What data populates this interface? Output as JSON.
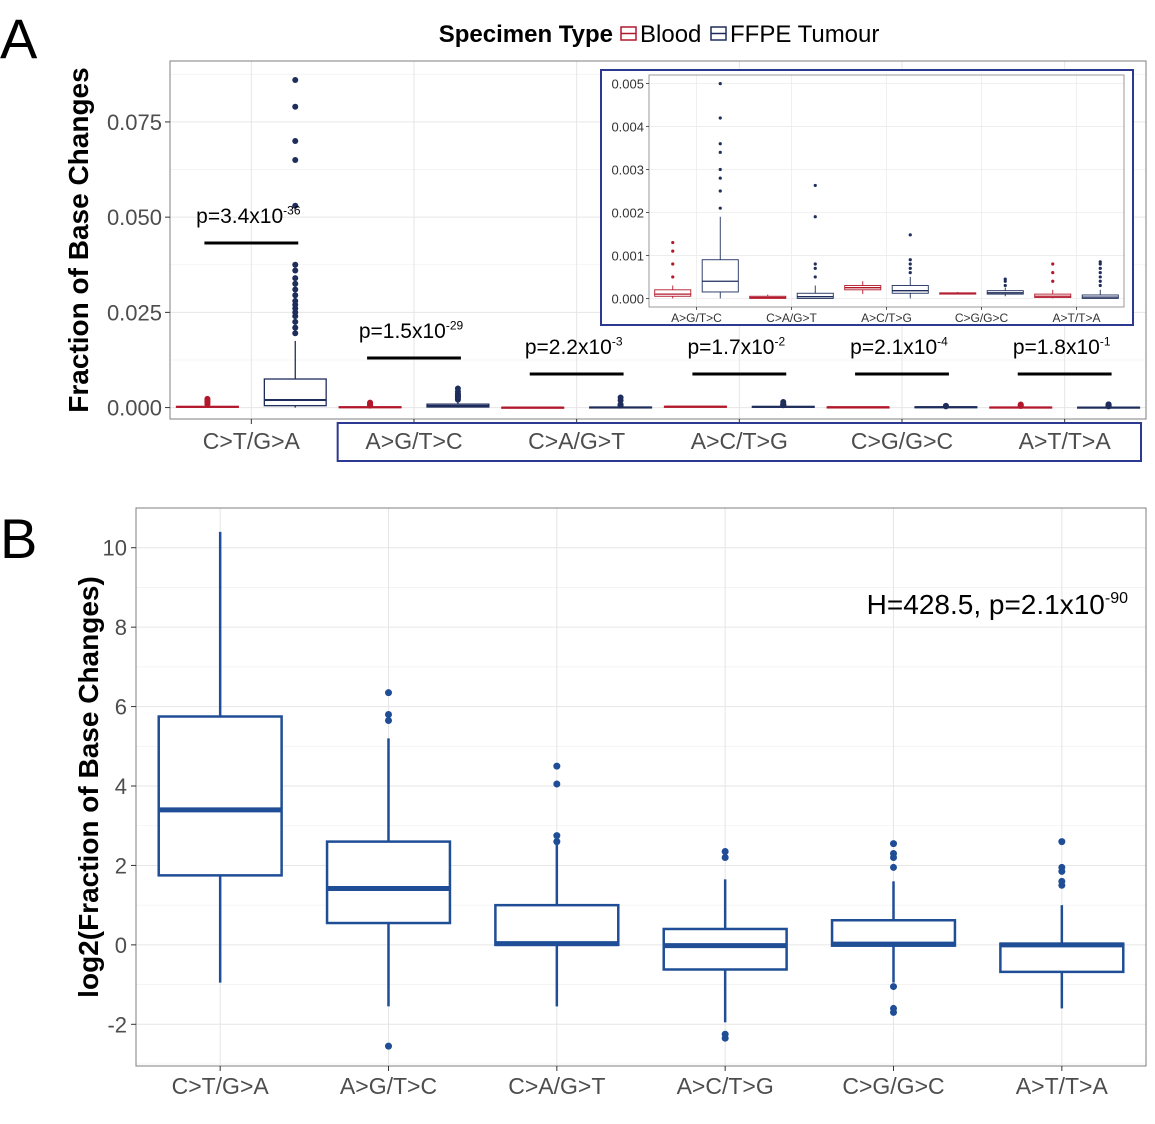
{
  "panels": {
    "a_label": "A",
    "b_label": "B"
  },
  "legend": {
    "title": "Specimen Type",
    "items": [
      {
        "label": "Blood",
        "color": "#b2182b"
      },
      {
        "label": "FFPE Tumour",
        "color": "#1f2d5c"
      }
    ]
  },
  "colors": {
    "blood": "#b2182b",
    "ffpe": "#1f2d5c",
    "panel_b": "#1f4e96",
    "highlight_box": "#2b3990"
  },
  "chart_data": [
    {
      "panel": "A",
      "type": "box",
      "ylabel": "Fraction of Base Changes",
      "ylim": [
        -0.003,
        0.091
      ],
      "yticks": [
        0,
        0.025,
        0.05,
        0.075
      ],
      "ytick_labels": [
        "0.000",
        "0.025",
        "0.050",
        "0.075"
      ],
      "categories": [
        "C>T/G>A",
        "A>G/T>C",
        "C>A/G>T",
        "A>C/T>G",
        "C>G/G>C",
        "A>T/T>A"
      ],
      "series": [
        {
          "name": "Blood",
          "stats": [
            {
              "q1": 0.0001,
              "median": 0.0002,
              "q3": 0.0003,
              "wlo": 0.0,
              "whi": 0.0005,
              "outliers": [
                0.0009,
                0.0013,
                0.0016,
                0.002,
                0.0023
              ]
            },
            {
              "q1": 5e-05,
              "median": 0.0001,
              "q3": 0.0002,
              "wlo": 0.0,
              "whi": 0.0003,
              "outliers": [
                0.0005,
                0.0008,
                0.0011,
                0.0013
              ]
            },
            {
              "q1": 0.0,
              "median": 2e-05,
              "q3": 5e-05,
              "wlo": 0.0,
              "whi": 9e-05,
              "outliers": []
            },
            {
              "q1": 0.0002,
              "median": 0.00025,
              "q3": 0.0003,
              "wlo": 0.0001,
              "whi": 0.0004,
              "outliers": []
            },
            {
              "q1": 0.0001,
              "median": 0.00012,
              "q3": 0.00013,
              "wlo": 0.0001,
              "whi": 0.00015,
              "outliers": []
            },
            {
              "q1": 2e-05,
              "median": 5e-05,
              "q3": 0.0001,
              "wlo": 0.0,
              "whi": 0.0002,
              "outliers": [
                0.0004,
                0.0006,
                0.0008
              ]
            }
          ]
        },
        {
          "name": "FFPE Tumour",
          "stats": [
            {
              "q1": 0.0005,
              "median": 0.002,
              "q3": 0.0075,
              "wlo": 0.0,
              "whi": 0.0175,
              "outliers": [
                0.0195,
                0.021,
                0.0225,
                0.024,
                0.025,
                0.026,
                0.027,
                0.028,
                0.0295,
                0.031,
                0.0325,
                0.034,
                0.036,
                0.0375,
                0.053,
                0.065,
                0.07,
                0.079,
                0.086
              ]
            },
            {
              "q1": 0.00015,
              "median": 0.0004,
              "q3": 0.0009,
              "wlo": 0.0,
              "whi": 0.0019,
              "outliers": [
                0.0021,
                0.0025,
                0.0028,
                0.003,
                0.0034,
                0.0036,
                0.0042,
                0.005
              ]
            },
            {
              "q1": 0.0,
              "median": 4e-05,
              "q3": 0.00012,
              "wlo": 0.0,
              "whi": 0.0003,
              "outliers": [
                0.0005,
                0.0007,
                0.0008,
                0.0019,
                0.00263
              ]
            },
            {
              "q1": 0.00012,
              "median": 0.00018,
              "q3": 0.0003,
              "wlo": 0.0,
              "whi": 0.0005,
              "outliers": [
                0.0006,
                0.0007,
                0.0008,
                0.0009,
                0.00148
              ]
            },
            {
              "q1": 0.0001,
              "median": 0.00013,
              "q3": 0.00018,
              "wlo": 5e-05,
              "whi": 0.00025,
              "outliers": [
                0.0003,
                0.0004,
                0.00045
              ]
            },
            {
              "q1": 0.0,
              "median": 3e-05,
              "q3": 8e-05,
              "wlo": 0.0,
              "whi": 0.0002,
              "outliers": [
                0.0003,
                0.0004,
                0.0005,
                0.0006,
                0.0007,
                0.0008,
                0.00085
              ]
            }
          ]
        }
      ],
      "annotations": [
        {
          "category": "C>T/G>A",
          "text": "p=3.4x10",
          "exp": "-36"
        },
        {
          "category": "A>G/T>C",
          "text": "p=1.5x10",
          "exp": "-29"
        },
        {
          "category": "C>A/G>T",
          "text": "p=2.2x10",
          "exp": "-3"
        },
        {
          "category": "A>C/T>G",
          "text": "p=1.7x10",
          "exp": "-2"
        },
        {
          "category": "C>G/G>C",
          "text": "p=2.1x10",
          "exp": "-4"
        },
        {
          "category": "A>T/T>A",
          "text": "p=1.8x10",
          "exp": "-1"
        }
      ],
      "inset": {
        "ylim": [
          -0.0002,
          0.0052
        ],
        "yticks": [
          0,
          0.001,
          0.002,
          0.003,
          0.004,
          0.005
        ],
        "ytick_labels": [
          "0.000",
          "0.001",
          "0.002",
          "0.003",
          "0.004",
          "0.005"
        ],
        "categories": [
          "A>G/T>C",
          "C>A/G>T",
          "A>C/T>G",
          "C>G/G>C",
          "A>T/T>A"
        ]
      }
    },
    {
      "panel": "B",
      "type": "box",
      "ylabel": "log2(Fraction of Base Changes)",
      "ylim": [
        -3.05,
        11
      ],
      "yticks": [
        -2,
        0,
        2,
        4,
        6,
        8,
        10
      ],
      "ytick_labels": [
        "-2",
        "0",
        "2",
        "4",
        "6",
        "8",
        "10"
      ],
      "categories": [
        "C>T/G>A",
        "A>G/T>C",
        "C>A/G>T",
        "A>C/T>G",
        "C>G/G>C",
        "A>T/T>A"
      ],
      "stats": [
        {
          "q1": 1.75,
          "median": 3.4,
          "q3": 5.75,
          "wlo": -0.95,
          "whi": 10.4,
          "outliers": []
        },
        {
          "q1": 0.55,
          "median": 1.42,
          "q3": 2.6,
          "wlo": -1.55,
          "whi": 5.2,
          "outliers": [
            5.65,
            5.8,
            6.35,
            -2.55
          ]
        },
        {
          "q1": 0.0,
          "median": 0.03,
          "q3": 1.0,
          "wlo": -1.55,
          "whi": 2.55,
          "outliers": [
            2.6,
            2.75,
            4.05,
            4.5
          ]
        },
        {
          "q1": -0.62,
          "median": -0.02,
          "q3": 0.4,
          "wlo": -1.95,
          "whi": 1.65,
          "outliers": [
            2.2,
            2.35,
            -2.25,
            -2.35
          ]
        },
        {
          "q1": -0.02,
          "median": 0.02,
          "q3": 0.62,
          "wlo": -0.95,
          "whi": 1.6,
          "outliers": [
            1.95,
            2.2,
            2.3,
            2.55,
            -1.05,
            -1.6,
            -1.7
          ]
        },
        {
          "q1": -0.68,
          "median": 0.0,
          "q3": 0.03,
          "wlo": -1.6,
          "whi": 1.0,
          "outliers": [
            1.5,
            1.6,
            1.85,
            1.95,
            2.6
          ]
        }
      ],
      "annotation": {
        "text": "H=428.5, p=2.1x10",
        "exp": "-90"
      }
    }
  ]
}
